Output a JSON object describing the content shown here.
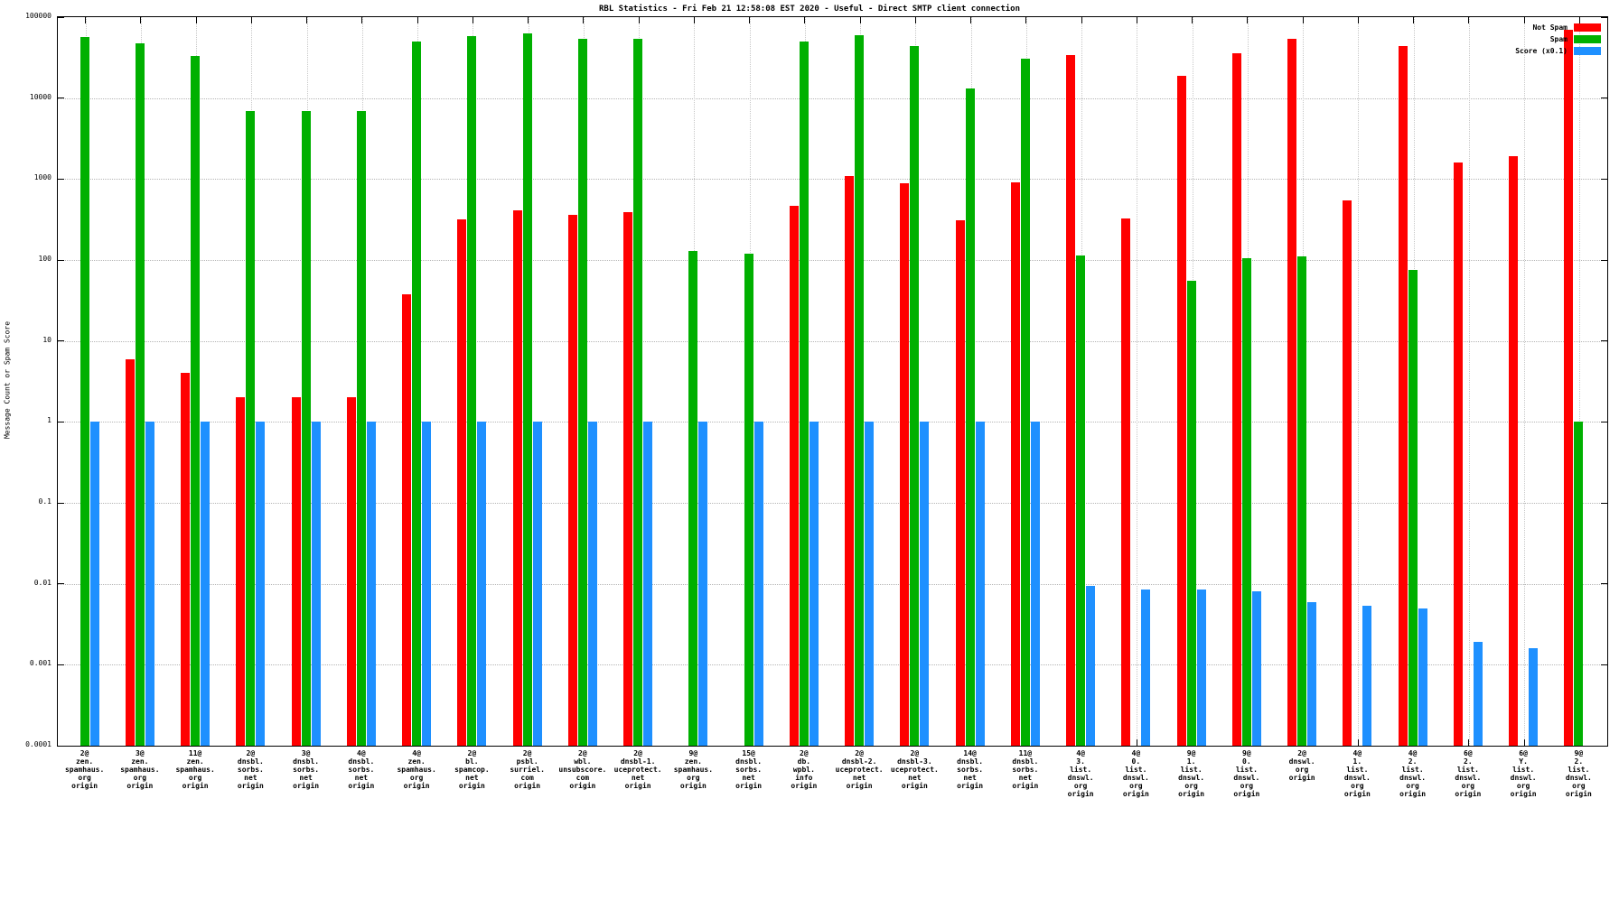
{
  "chart_data": {
    "type": "bar",
    "title": "RBL Statistics - Fri Feb 21 12:58:08 EST 2020 - Useful - Direct SMTP client connection",
    "ylabel": "Message Count or Spam Score",
    "y_scale": "log",
    "ylim": [
      0.0001,
      100000
    ],
    "y_ticks": [
      "100000",
      "10000",
      "1000",
      "100",
      "10",
      "1",
      "0.1",
      "0.01",
      "0.001",
      "0.0001"
    ],
    "grid": "dotted",
    "legend_position": "top-right",
    "colors": {
      "not_spam": "#ff0000",
      "spam": "#00b000",
      "score": "#1e90ff"
    },
    "categories": [
      [
        "2@",
        "zen.",
        "spamhaus.",
        "org",
        "origin"
      ],
      [
        "3@",
        "zen.",
        "spamhaus.",
        "org",
        "origin"
      ],
      [
        "11@",
        "zen.",
        "spamhaus.",
        "org",
        "origin"
      ],
      [
        "2@",
        "dnsbl.",
        "sorbs.",
        "net",
        "origin"
      ],
      [
        "3@",
        "dnsbl.",
        "sorbs.",
        "net",
        "origin"
      ],
      [
        "4@",
        "dnsbl.",
        "sorbs.",
        "net",
        "origin"
      ],
      [
        "4@",
        "zen.",
        "spamhaus.",
        "org",
        "origin"
      ],
      [
        "2@",
        "bl.",
        "spamcop.",
        "net",
        "origin"
      ],
      [
        "2@",
        "psbl.",
        "surriel.",
        "com",
        "origin"
      ],
      [
        "2@",
        "wbl.",
        "unsubscore.",
        "com",
        "origin"
      ],
      [
        "2@",
        "dnsbl-1.",
        "uceprotect.",
        "net",
        "origin"
      ],
      [
        "9@",
        "zen.",
        "spamhaus.",
        "org",
        "origin"
      ],
      [
        "15@",
        "dnsbl.",
        "sorbs.",
        "net",
        "origin"
      ],
      [
        "2@",
        "db.",
        "wpbl.",
        "info",
        "origin"
      ],
      [
        "2@",
        "dnsbl-2.",
        "uceprotect.",
        "net",
        "origin"
      ],
      [
        "2@",
        "dnsbl-3.",
        "uceprotect.",
        "net",
        "origin"
      ],
      [
        "14@",
        "dnsbl.",
        "sorbs.",
        "net",
        "origin"
      ],
      [
        "11@",
        "dnsbl.",
        "sorbs.",
        "net",
        "origin"
      ],
      [
        "4@",
        "3.",
        "list.",
        "dnswl.",
        "org",
        "origin"
      ],
      [
        "4@",
        "0.",
        "list.",
        "dnswl.",
        "org",
        "origin"
      ],
      [
        "9@",
        "1.",
        "list.",
        "dnswl.",
        "org",
        "origin"
      ],
      [
        "9@",
        "0.",
        "list.",
        "dnswl.",
        "org",
        "origin"
      ],
      [
        "2@",
        "dnswl.",
        "org",
        "origin"
      ],
      [
        "4@",
        "1.",
        "list.",
        "dnswl.",
        "org",
        "origin"
      ],
      [
        "4@",
        "2.",
        "list.",
        "dnswl.",
        "org",
        "origin"
      ],
      [
        "6@",
        "2.",
        "list.",
        "dnswl.",
        "org",
        "origin"
      ],
      [
        "6@",
        "Y.",
        "list.",
        "dnswl.",
        "org",
        "origin"
      ],
      [
        "9@",
        "2.",
        "list.",
        "dnswl.",
        "org",
        "origin"
      ]
    ],
    "series": [
      {
        "name": "Not Spam",
        "color_key": "not_spam",
        "values": [
          null,
          6,
          4,
          2,
          2,
          2,
          38,
          320,
          410,
          360,
          390,
          null,
          null,
          470,
          1100,
          880,
          310,
          900,
          34000,
          330,
          19000,
          36000,
          54000,
          550,
          44000,
          1600,
          1900,
          70000
        ]
      },
      {
        "name": "Spam",
        "color_key": "spam",
        "values": [
          57000,
          48000,
          33000,
          7000,
          7000,
          7000,
          50000,
          58000,
          63000,
          54000,
          54000,
          130,
          120,
          50000,
          60000,
          44000,
          13000,
          31000,
          115,
          null,
          55,
          105,
          110,
          null,
          75,
          null,
          null,
          1
        ]
      },
      {
        "name": "Score (x0.1)",
        "color_key": "score",
        "values": [
          1,
          1,
          1,
          1,
          1,
          1,
          1,
          1,
          1,
          1,
          1,
          1,
          1,
          1,
          1,
          1,
          1,
          1,
          0.0094,
          0.0085,
          0.0085,
          0.008,
          0.006,
          0.0054,
          0.005,
          0.0019,
          0.0016,
          null
        ]
      }
    ]
  }
}
